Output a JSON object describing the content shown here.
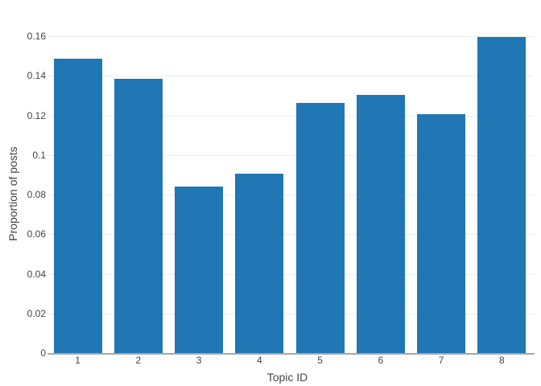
{
  "chart_data": {
    "type": "bar",
    "title": "",
    "xlabel": "Topic ID",
    "ylabel": "Proportion of posts",
    "categories": [
      "1",
      "2",
      "3",
      "4",
      "5",
      "6",
      "7",
      "8"
    ],
    "values": [
      0.1485,
      0.1385,
      0.0842,
      0.0906,
      0.1264,
      0.1303,
      0.1207,
      0.1597
    ],
    "ylim": [
      0,
      0.16
    ],
    "ytick_step": 0.02,
    "ytick_labels": [
      "0",
      "0.02",
      "0.04",
      "0.06",
      "0.08",
      "0.1",
      "0.12",
      "0.14",
      "0.16"
    ],
    "grid": true,
    "legend_position": "none",
    "colors": {
      "bar": "#2077b4",
      "gridline": "#ebedee",
      "axis_line": "#a5a7a9",
      "text": "#444444",
      "background": "#ffffff"
    }
  }
}
